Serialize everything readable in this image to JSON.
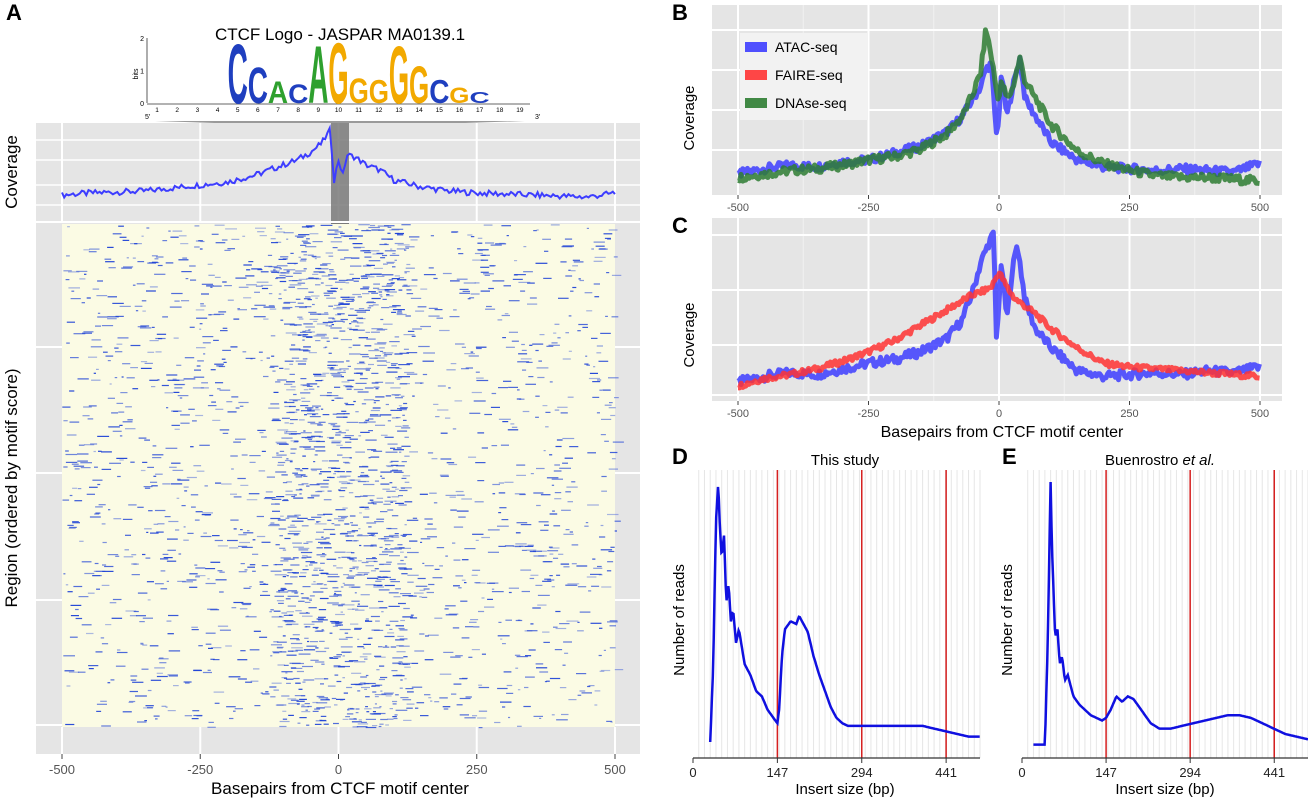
{
  "panels": {
    "A": {
      "letter": "A",
      "logo_title": "CTCF Logo - JASPAR MA0139.1",
      "logo_ylabel": "bits",
      "logo_yticks": [
        "0",
        "1",
        "2"
      ],
      "logo_positions": [
        "1",
        "2",
        "3",
        "4",
        "5",
        "6",
        "7",
        "8",
        "9",
        "10",
        "11",
        "12",
        "13",
        "14",
        "15",
        "16",
        "17",
        "18",
        "19"
      ],
      "logo_end5": "5′",
      "logo_end3": "3′",
      "logo_letters": [
        {
          "pos": 5,
          "base": "C",
          "bits": 1.9
        },
        {
          "pos": 6,
          "base": "C",
          "bits": 1.15
        },
        {
          "pos": 7,
          "base": "A",
          "bits": 0.7
        },
        {
          "pos": 8,
          "base": "C",
          "bits": 0.6
        },
        {
          "pos": 9,
          "base": "A",
          "bits": 1.85
        },
        {
          "pos": 10,
          "base": "G",
          "bits": 1.95
        },
        {
          "pos": 11,
          "base": "G",
          "bits": 0.8
        },
        {
          "pos": 12,
          "base": "G",
          "bits": 0.75
        },
        {
          "pos": 13,
          "base": "G",
          "bits": 1.85
        },
        {
          "pos": 14,
          "base": "G",
          "bits": 1.2
        },
        {
          "pos": 15,
          "base": "C",
          "bits": 0.75
        },
        {
          "pos": 16,
          "base": "G",
          "bits": 0.5
        },
        {
          "pos": 17,
          "base": "C",
          "bits": 0.35
        }
      ]
    },
    "B": {
      "letter": "B"
    },
    "C": {
      "letter": "C"
    },
    "D": {
      "letter": "D",
      "title": "This study"
    },
    "E": {
      "letter": "E",
      "title_main": "Buenrostro ",
      "title_italic": "et al."
    }
  },
  "colors": {
    "atac": "#3d3dff",
    "faire": "#ff3333",
    "dnase": "#2e7d32",
    "panel_bg": "#e5e5e5",
    "grid": "#ffffff",
    "heat_bg": "#fbfbe4",
    "heat_mark": "#1a3fd6",
    "insert_line": "#1010e0",
    "insert_vline": "#d62020"
  },
  "chart_data": [
    {
      "id": "A-coverage",
      "type": "line",
      "ylabel": "Coverage",
      "xlabel": "",
      "xlim": [
        -500,
        500
      ],
      "series": [
        {
          "name": "ATAC-seq",
          "x": [
            -500,
            -450,
            -400,
            -350,
            -300,
            -250,
            -200,
            -150,
            -100,
            -75,
            -50,
            -30,
            -15,
            -8,
            0,
            8,
            15,
            30,
            50,
            75,
            100,
            150,
            200,
            250,
            300,
            350,
            400,
            450,
            500
          ],
          "values": [
            0.2,
            0.22,
            0.23,
            0.24,
            0.27,
            0.3,
            0.33,
            0.4,
            0.5,
            0.55,
            0.63,
            0.72,
            0.85,
            0.35,
            0.55,
            0.4,
            0.6,
            0.58,
            0.5,
            0.45,
            0.35,
            0.28,
            0.24,
            0.22,
            0.21,
            0.2,
            0.19,
            0.18,
            0.22
          ]
        }
      ]
    },
    {
      "id": "A-heatmap",
      "type": "heatmap",
      "xlabel": "Basepairs from CTCF motif center",
      "ylabel": "Region (ordered by motif score)",
      "xlim": [
        -500,
        500
      ],
      "xticks": [
        "-500",
        "-250",
        "0",
        "250",
        "500"
      ]
    },
    {
      "id": "B",
      "type": "line",
      "ylabel": "Coverage",
      "xlabel": "",
      "xlim": [
        -500,
        500
      ],
      "xticks": [
        "-500",
        "-250",
        "0",
        "250",
        "500"
      ],
      "legend": [
        "ATAC-seq",
        "FAIRE-seq",
        "DNAse-seq"
      ],
      "legend_position": "top-left",
      "series": [
        {
          "name": "ATAC-seq",
          "x": [
            -500,
            -450,
            -400,
            -350,
            -300,
            -250,
            -200,
            -150,
            -100,
            -70,
            -50,
            -35,
            -25,
            -15,
            -5,
            0,
            5,
            15,
            25,
            40,
            50,
            70,
            100,
            150,
            200,
            250,
            300,
            350,
            400,
            450,
            500
          ],
          "values": [
            0.12,
            0.15,
            0.17,
            0.16,
            0.19,
            0.2,
            0.24,
            0.28,
            0.36,
            0.45,
            0.55,
            0.62,
            0.72,
            0.75,
            0.35,
            0.45,
            0.7,
            0.45,
            0.6,
            0.78,
            0.55,
            0.45,
            0.3,
            0.2,
            0.16,
            0.15,
            0.14,
            0.15,
            0.14,
            0.13,
            0.18
          ]
        },
        {
          "name": "FAIRE-seq",
          "x": [],
          "values": []
        },
        {
          "name": "DNAse-seq",
          "x": [
            -500,
            -450,
            -400,
            -350,
            -300,
            -250,
            -200,
            -150,
            -100,
            -70,
            -50,
            -35,
            -25,
            -15,
            -5,
            0,
            5,
            15,
            25,
            40,
            50,
            70,
            100,
            150,
            200,
            250,
            300,
            350,
            400,
            450,
            500
          ],
          "values": [
            0.1,
            0.12,
            0.14,
            0.15,
            0.17,
            0.2,
            0.22,
            0.26,
            0.35,
            0.45,
            0.58,
            0.7,
            0.95,
            0.8,
            0.6,
            0.55,
            0.65,
            0.55,
            0.6,
            0.78,
            0.65,
            0.55,
            0.4,
            0.25,
            0.18,
            0.14,
            0.11,
            0.1,
            0.1,
            0.09,
            0.08
          ]
        }
      ]
    },
    {
      "id": "C",
      "type": "line",
      "ylabel": "Coverage",
      "xlabel": "Basepairs from CTCF motif center",
      "xlim": [
        -500,
        500
      ],
      "xticks": [
        "-500",
        "-250",
        "0",
        "250",
        "500"
      ],
      "series": [
        {
          "name": "ATAC-seq",
          "x": [
            -500,
            -450,
            -400,
            -350,
            -300,
            -250,
            -200,
            -150,
            -100,
            -70,
            -50,
            -35,
            -20,
            -10,
            -5,
            0,
            5,
            15,
            25,
            35,
            50,
            70,
            100,
            150,
            200,
            250,
            300,
            350,
            400,
            450,
            500
          ],
          "values": [
            0.12,
            0.15,
            0.17,
            0.16,
            0.19,
            0.22,
            0.24,
            0.28,
            0.35,
            0.45,
            0.6,
            0.75,
            0.85,
            0.9,
            0.35,
            0.55,
            0.75,
            0.45,
            0.7,
            0.85,
            0.55,
            0.4,
            0.3,
            0.18,
            0.15,
            0.16,
            0.17,
            0.16,
            0.18,
            0.17,
            0.2
          ]
        },
        {
          "name": "FAIRE-seq",
          "x": [
            -500,
            -450,
            -400,
            -350,
            -300,
            -250,
            -200,
            -150,
            -100,
            -70,
            -50,
            -30,
            -15,
            0,
            15,
            30,
            50,
            70,
            100,
            150,
            200,
            250,
            300,
            350,
            400,
            450,
            500
          ],
          "values": [
            0.1,
            0.14,
            0.16,
            0.19,
            0.23,
            0.28,
            0.34,
            0.42,
            0.5,
            0.55,
            0.58,
            0.6,
            0.62,
            0.7,
            0.62,
            0.56,
            0.52,
            0.48,
            0.4,
            0.3,
            0.22,
            0.2,
            0.19,
            0.18,
            0.17,
            0.16,
            0.15
          ]
        }
      ]
    },
    {
      "id": "D",
      "type": "line",
      "title": "This study",
      "xlabel": "Insert size (bp)",
      "ylabel": "Number of reads",
      "xlim": [
        0,
        500
      ],
      "xticks": [
        "0",
        "147",
        "294",
        "441"
      ],
      "vlines": [
        147,
        294,
        441
      ],
      "series": [
        {
          "name": "reads",
          "x": [
            30,
            35,
            40,
            44,
            47,
            50,
            54,
            58,
            62,
            66,
            70,
            75,
            80,
            90,
            100,
            110,
            120,
            130,
            140,
            147,
            150,
            155,
            160,
            170,
            180,
            185,
            190,
            200,
            210,
            220,
            230,
            240,
            250,
            260,
            270,
            280,
            290,
            300,
            320,
            340,
            360,
            380,
            400,
            420,
            440,
            460,
            480,
            500
          ],
          "values": [
            0.03,
            0.3,
            0.85,
            1.0,
            0.82,
            0.72,
            0.8,
            0.55,
            0.62,
            0.48,
            0.52,
            0.4,
            0.45,
            0.32,
            0.28,
            0.22,
            0.2,
            0.15,
            0.12,
            0.1,
            0.15,
            0.35,
            0.45,
            0.48,
            0.47,
            0.5,
            0.48,
            0.44,
            0.35,
            0.28,
            0.22,
            0.16,
            0.12,
            0.1,
            0.09,
            0.09,
            0.09,
            0.09,
            0.09,
            0.09,
            0.09,
            0.09,
            0.09,
            0.08,
            0.07,
            0.06,
            0.05,
            0.05
          ]
        }
      ]
    },
    {
      "id": "E",
      "type": "line",
      "title": "Buenrostro et al.",
      "xlabel": "Insert size (bp)",
      "ylabel": "Number of reads",
      "xlim": [
        0,
        500
      ],
      "xticks": [
        "0",
        "147",
        "294",
        "441"
      ],
      "vlines": [
        147,
        294,
        441
      ],
      "series": [
        {
          "name": "reads",
          "x": [
            20,
            40,
            45,
            50,
            52,
            55,
            58,
            62,
            66,
            70,
            75,
            80,
            90,
            100,
            110,
            120,
            130,
            140,
            147,
            155,
            165,
            175,
            185,
            195,
            205,
            215,
            225,
            240,
            260,
            280,
            300,
            320,
            340,
            360,
            380,
            400,
            420,
            440,
            460,
            480,
            500
          ],
          "values": [
            0.02,
            0.02,
            0.4,
            1.0,
            0.78,
            0.6,
            0.42,
            0.45,
            0.32,
            0.35,
            0.26,
            0.28,
            0.2,
            0.17,
            0.15,
            0.13,
            0.12,
            0.11,
            0.12,
            0.15,
            0.2,
            0.18,
            0.2,
            0.19,
            0.16,
            0.13,
            0.1,
            0.08,
            0.08,
            0.09,
            0.1,
            0.11,
            0.12,
            0.13,
            0.13,
            0.12,
            0.1,
            0.08,
            0.06,
            0.05,
            0.04
          ]
        }
      ]
    }
  ]
}
